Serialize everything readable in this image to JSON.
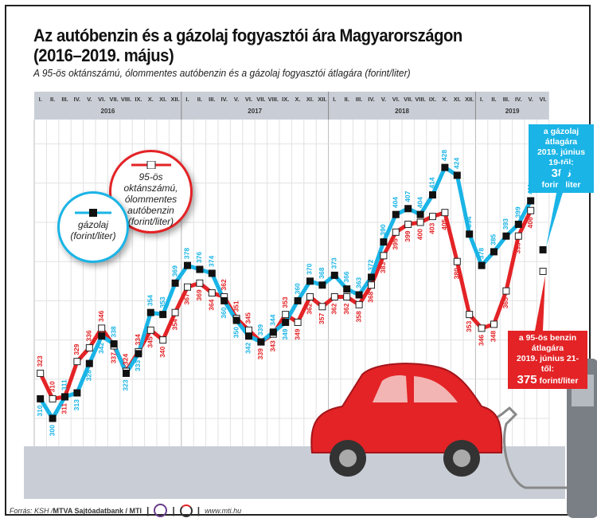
{
  "title_line1": "Az autóbenzin és a gázolaj fogyasztói ára Magyarországon",
  "title_line2": "(2016–2019. május)",
  "subtitle": "A 95-ös oktánszámú, ólommentes autóbenzin és a gázolaj fogyasztói átlagára (forint/liter)",
  "legend": {
    "petrol": "95-ös oktánszámú, ólommentes autóbenzin (forint/liter)",
    "petrol_lines": [
      "95-ös oktánszámú,",
      "ólommentes",
      "autóbenzin",
      "(forint/liter)"
    ],
    "diesel_lines": [
      "gázolaj",
      "(forint/liter)"
    ]
  },
  "callouts": {
    "diesel": {
      "line1": "a gázolaj átlagára",
      "line2": "2019. június 19-től:",
      "value": "386",
      "unit": "forint/liter"
    },
    "petrol": {
      "line1": "a 95-ös benzin átlagára",
      "line2": "2019. június 21-től:",
      "value": "375",
      "unit": "forint/liter"
    }
  },
  "footer": {
    "source": "Forrás: KSH / ",
    "agency": "MTVA Sajtóadatbank / MTI",
    "url": "www.mti.hu"
  },
  "colors": {
    "diesel": "#1ab4e6",
    "petrol": "#e32326",
    "header": "#c9ced6",
    "ground": "#c9ced6"
  },
  "chart_data": {
    "type": "line",
    "years": [
      "2016",
      "2017",
      "2018",
      "2019"
    ],
    "month_labels": [
      "I.",
      "II.",
      "III.",
      "IV.",
      "V.",
      "VI.",
      "VII.",
      "VIII.",
      "IX.",
      "X.",
      "XI.",
      "XII."
    ],
    "months_2019": [
      "I.",
      "II.",
      "III.",
      "IV.",
      "V.",
      "VI."
    ],
    "ylim": [
      300,
      440
    ],
    "grid": true,
    "series": [
      {
        "key": "diesel",
        "values": [
          310,
          300,
          311,
          313,
          328,
          342,
          338,
          323,
          333,
          354,
          353,
          369,
          378,
          376,
          374,
          360,
          350,
          342,
          339,
          344,
          349,
          360,
          370,
          368,
          373,
          366,
          363,
          372,
          390,
          404,
          407,
          404,
          414,
          428,
          424,
          394,
          378,
          385,
          393,
          399,
          411
        ],
        "june_2019": 386
      },
      {
        "key": "petrol",
        "values": [
          323,
          310,
          311,
          329,
          336,
          346,
          337,
          324,
          334,
          345,
          340,
          354,
          367,
          369,
          364,
          362,
          351,
          345,
          339,
          343,
          353,
          349,
          362,
          357,
          362,
          362,
          358,
          368,
          383,
          395,
          399,
          400,
          403,
          405,
          380,
          353,
          346,
          348,
          365,
          393,
          406
        ],
        "june_2019": 375
      }
    ]
  }
}
